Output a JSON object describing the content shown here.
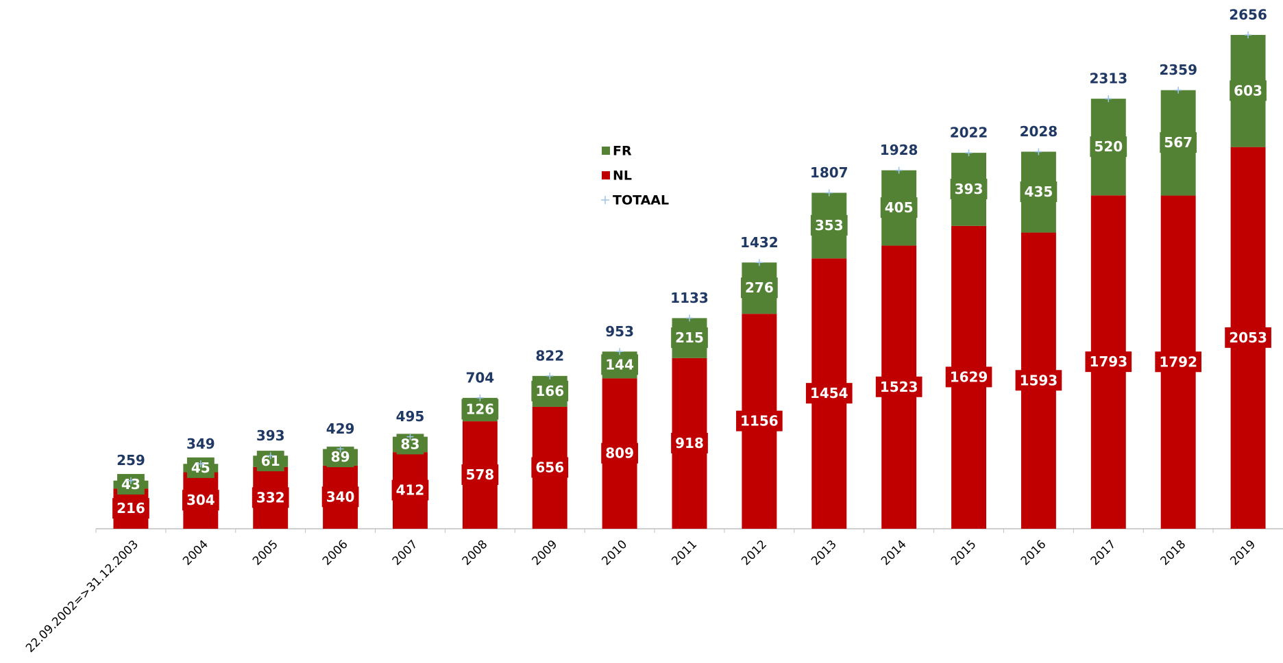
{
  "chart_data": {
    "type": "bar",
    "stacked": true,
    "categories": [
      "22.09.2002=>31.12.2003",
      "2004",
      "2005",
      "2006",
      "2007",
      "2008",
      "2009",
      "2010",
      "2011",
      "2012",
      "2013",
      "2014",
      "2015",
      "2016",
      "2017",
      "2018",
      "2019"
    ],
    "series": [
      {
        "name": "FR",
        "color": "#548235",
        "values": [
          43,
          45,
          61,
          89,
          83,
          126,
          166,
          144,
          215,
          276,
          353,
          405,
          393,
          435,
          520,
          567,
          603
        ]
      },
      {
        "name": "NL",
        "color": "#c00000",
        "values": [
          216,
          304,
          332,
          340,
          412,
          578,
          656,
          809,
          918,
          1156,
          1454,
          1523,
          1629,
          1593,
          1793,
          1792,
          2053
        ]
      },
      {
        "name": "TOTAAL",
        "color": "#9dc3e6",
        "marker": "+",
        "label_color": "#1f3864",
        "values": [
          259,
          349,
          393,
          429,
          495,
          704,
          822,
          953,
          1133,
          1432,
          1807,
          1928,
          2022,
          2028,
          2313,
          2359,
          2656
        ]
      }
    ]
  }
}
